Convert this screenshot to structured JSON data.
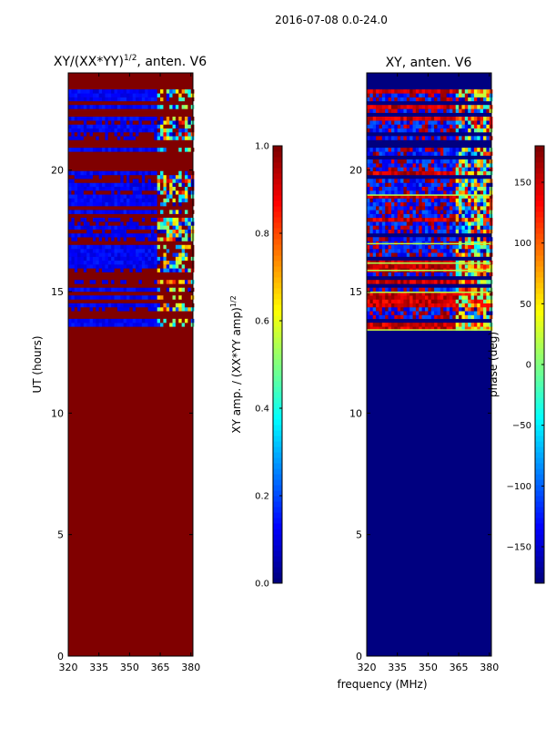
{
  "figure": {
    "suptitle": "2016-07-08 0.0-24.0",
    "xlabel_shared": "frequency (MHz)"
  },
  "chart_data": [
    {
      "type": "heatmap",
      "title_prefix": "XY/(XX*YY)",
      "title_sup": "1/2",
      "title_suffix": ", anten. V6",
      "xlabel": "",
      "ylabel": "UT (hours)",
      "xlim": [
        320,
        381
      ],
      "ylim": [
        0,
        24
      ],
      "xticks": [
        320,
        335,
        350,
        365,
        380
      ],
      "yticks": [
        0,
        5,
        10,
        15,
        20
      ],
      "colormap": "jet",
      "background_value": 1.0,
      "data_start_hour": 13.4,
      "colorbar": {
        "label_main": "XY amp. / (XX*YY amp)",
        "label_sup": "1/2",
        "range": [
          0.0,
          1.0
        ],
        "ticks": [
          "0.0",
          "0.2",
          "0.4",
          "0.6",
          "0.8",
          "1.0"
        ]
      }
    },
    {
      "type": "heatmap",
      "title": "XY, anten. V6",
      "xlabel": "frequency (MHz)",
      "ylabel": "",
      "xlim": [
        320,
        381
      ],
      "ylim": [
        0,
        24
      ],
      "xticks": [
        320,
        335,
        350,
        365,
        380
      ],
      "yticks": [
        0,
        5,
        10,
        15,
        20
      ],
      "colormap": "jet",
      "background_value": -180,
      "data_start_hour": 13.4,
      "colorbar": {
        "label_main": "phase (deg)",
        "range": [
          -180,
          180
        ],
        "ticks": [
          "−150",
          "−100",
          "−50",
          "0",
          "50",
          "100",
          "150"
        ]
      }
    }
  ]
}
